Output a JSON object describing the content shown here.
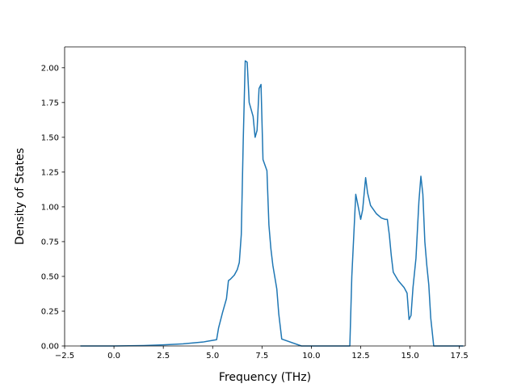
{
  "chart_data": {
    "type": "line",
    "title": "",
    "xlabel": "Frequency (THz)",
    "ylabel": "Density of States",
    "xlim": [
      -2.5,
      17.8
    ],
    "ylim": [
      0.0,
      2.15
    ],
    "xticks": [
      -2.5,
      0.0,
      2.5,
      5.0,
      7.5,
      10.0,
      12.5,
      15.0,
      17.5
    ],
    "xtick_labels": [
      "−2.5",
      "0.0",
      "2.5",
      "5.0",
      "7.5",
      "10.0",
      "12.5",
      "15.0",
      "17.5"
    ],
    "yticks": [
      0.0,
      0.25,
      0.5,
      0.75,
      1.0,
      1.25,
      1.5,
      1.75,
      2.0
    ],
    "ytick_labels": [
      "0.00",
      "0.25",
      "0.50",
      "0.75",
      "1.00",
      "1.25",
      "1.50",
      "1.75",
      "2.00"
    ],
    "grid": false,
    "colors": {
      "line": "#1f77b4",
      "axes": "#000000",
      "background": "#ffffff"
    },
    "series": [
      {
        "x": [
          -1.7,
          0.0,
          1.5,
          2.5,
          3.5,
          4.5,
          5.2,
          5.3,
          5.5,
          5.7,
          5.8,
          5.9,
          6.1,
          6.25,
          6.35,
          6.45,
          6.55,
          6.65,
          6.75,
          6.85,
          6.95,
          7.05,
          7.15,
          7.25,
          7.35,
          7.45,
          7.55,
          7.65,
          7.75,
          7.85,
          7.95,
          8.05,
          8.25,
          8.35,
          8.5,
          9.5,
          11.0,
          11.95,
          12.05,
          12.25,
          12.35,
          12.5,
          12.6,
          12.75,
          12.85,
          13.0,
          13.3,
          13.55,
          13.75,
          13.85,
          13.95,
          14.05,
          14.15,
          14.4,
          14.7,
          14.85,
          14.95,
          15.05,
          15.15,
          15.3,
          15.45,
          15.55,
          15.65,
          15.75,
          15.85,
          15.95,
          16.05,
          16.2,
          17.0,
          17.7
        ],
        "y": [
          0.0,
          0.0,
          0.003,
          0.008,
          0.015,
          0.028,
          0.045,
          0.13,
          0.24,
          0.34,
          0.47,
          0.48,
          0.51,
          0.55,
          0.6,
          0.8,
          1.48,
          2.05,
          2.04,
          1.75,
          1.7,
          1.65,
          1.5,
          1.55,
          1.85,
          1.88,
          1.34,
          1.3,
          1.26,
          0.87,
          0.7,
          0.58,
          0.41,
          0.23,
          0.05,
          0.0,
          0.0,
          0.0,
          0.5,
          1.09,
          1.02,
          0.91,
          0.98,
          1.21,
          1.1,
          1.01,
          0.95,
          0.92,
          0.91,
          0.91,
          0.8,
          0.65,
          0.53,
          0.47,
          0.42,
          0.38,
          0.19,
          0.22,
          0.42,
          0.63,
          1.04,
          1.22,
          1.09,
          0.75,
          0.58,
          0.44,
          0.2,
          0.0,
          0.0,
          0.0
        ]
      }
    ]
  }
}
